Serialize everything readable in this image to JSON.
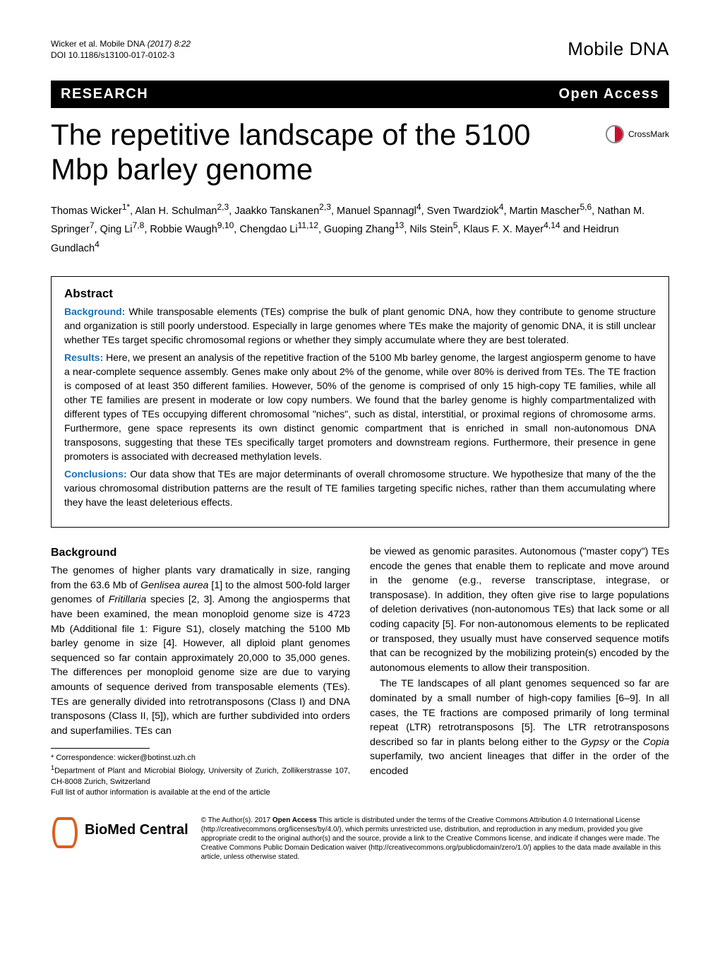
{
  "header": {
    "citation_authors": "Wicker et al. Mobile DNA",
    "citation_year_vol": " (2017) 8:22",
    "doi": "DOI 10.1186/s13100-017-0102-3",
    "journal": "Mobile DNA"
  },
  "bar": {
    "left": "RESEARCH",
    "right": "Open Access"
  },
  "title": "The repetitive landscape of the 5100 Mbp barley genome",
  "crossmark_label": "CrossMark",
  "authors_html": "Thomas Wicker<sup>1*</sup>, Alan H. Schulman<sup>2,3</sup>, Jaakko Tanskanen<sup>2,3</sup>, Manuel Spannagl<sup>4</sup>, Sven Twardziok<sup>4</sup>, Martin Mascher<sup>5,6</sup>, Nathan M. Springer<sup>7</sup>, Qing Li<sup>7,8</sup>, Robbie Waugh<sup>9,10</sup>, Chengdao Li<sup>11,12</sup>, Guoping Zhang<sup>13</sup>, Nils Stein<sup>5</sup>, Klaus F. X. Mayer<sup>4,14</sup> and Heidrun Gundlach<sup>4</sup>",
  "abstract": {
    "heading": "Abstract",
    "background_label": "Background:",
    "background": " While transposable elements (TEs) comprise the bulk of plant genomic DNA, how they contribute to genome structure and organization is still poorly understood. Especially in large genomes where TEs make the majority of genomic DNA, it is still unclear whether TEs target specific chromosomal regions or whether they simply accumulate where they are best tolerated.",
    "results_label": "Results:",
    "results": " Here, we present an analysis of the repetitive fraction of the 5100 Mb barley genome, the largest angiosperm genome to have a near-complete sequence assembly. Genes make only about 2% of the genome, while over 80% is derived from TEs. The TE fraction is composed of at least 350 different families. However, 50% of the genome is comprised of only 15 high-copy TE families, while all other TE families are present in moderate or low copy numbers. We found that the barley genome is highly compartmentalized with different types of TEs occupying different chromosomal \"niches\", such as distal, interstitial, or proximal regions of chromosome arms. Furthermore, gene space represents its own distinct genomic compartment that is enriched in small non-autonomous DNA transposons, suggesting that these TEs specifically target promoters and downstream regions. Furthermore, their presence in gene promoters is associated with decreased methylation levels.",
    "conclusions_label": "Conclusions:",
    "conclusions": " Our data show that TEs are major determinants of overall chromosome structure. We hypothesize that many of the the various chromosomal distribution patterns are the result of TE families targeting specific niches, rather than them accumulating where they have the least deleterious effects."
  },
  "background_heading": "Background",
  "body": {
    "p1": "The genomes of higher plants vary dramatically in size, ranging from the 63.6 Mb of Genlisea aurea [1] to the almost 500-fold larger genomes of Fritillaria species [2, 3]. Among the angiosperms that have been examined, the mean monoploid genome size is 4723 Mb (Additional file 1: Figure S1), closely matching the 5100 Mb barley genome in size [4]. However, all diploid plant genomes sequenced so far contain approximately 20,000 to 35,000 genes. The differences per monoploid genome size are due to varying amounts of sequence derived from transposable elements (TEs). TEs are generally divided into retrotransposons (Class I) and DNA transposons (Class II, [5]), which are further subdivided into orders and superfamilies. TEs can",
    "p2": "be viewed as genomic parasites. Autonomous (\"master copy\") TEs encode the genes that enable them to replicate and move around in the genome (e.g., reverse transcriptase, integrase, or transposase). In addition, they often give rise to large populations of deletion derivatives (non-autonomous TEs) that lack some or all coding capacity [5]. For non-autonomous elements to be replicated or transposed, they usually must have conserved sequence motifs that can be recognized by the mobilizing protein(s) encoded by the autonomous elements to allow their transposition.",
    "p3": "The TE landscapes of all plant genomes sequenced so far are dominated by a small number of high-copy families [6–9]. In all cases, the TE fractions are composed primarily of long terminal repeat (LTR) retrotransposons [5]. The LTR retrotransposons described so far in plants belong either to the Gypsy or the Copia superfamily, two ancient lineages that differ in the order of the encoded"
  },
  "footnotes": {
    "corr": "* Correspondence: wicker@botinst.uzh.ch",
    "aff1": "1Department of Plant and Microbial Biology, University of Zurich, Zollikerstrasse 107, CH-8008 Zurich, Switzerland",
    "full": "Full list of author information is available at the end of the article"
  },
  "bmc": "BioMed Central",
  "license": "© The Author(s). 2017 Open Access This article is distributed under the terms of the Creative Commons Attribution 4.0 International License (http://creativecommons.org/licenses/by/4.0/), which permits unrestricted use, distribution, and reproduction in any medium, provided you give appropriate credit to the original author(s) and the source, provide a link to the Creative Commons license, and indicate if changes were made. The Creative Commons Public Domain Dedication waiver (http://creativecommons.org/publicdomain/zero/1.0/) applies to the data made available in this article, unless otherwise stated.",
  "colors": {
    "accent_blue": "#1a6fb3",
    "crossmark_red": "#c8102e",
    "bmc_orange": "#d95f1e",
    "text": "#000000",
    "background": "#ffffff"
  }
}
